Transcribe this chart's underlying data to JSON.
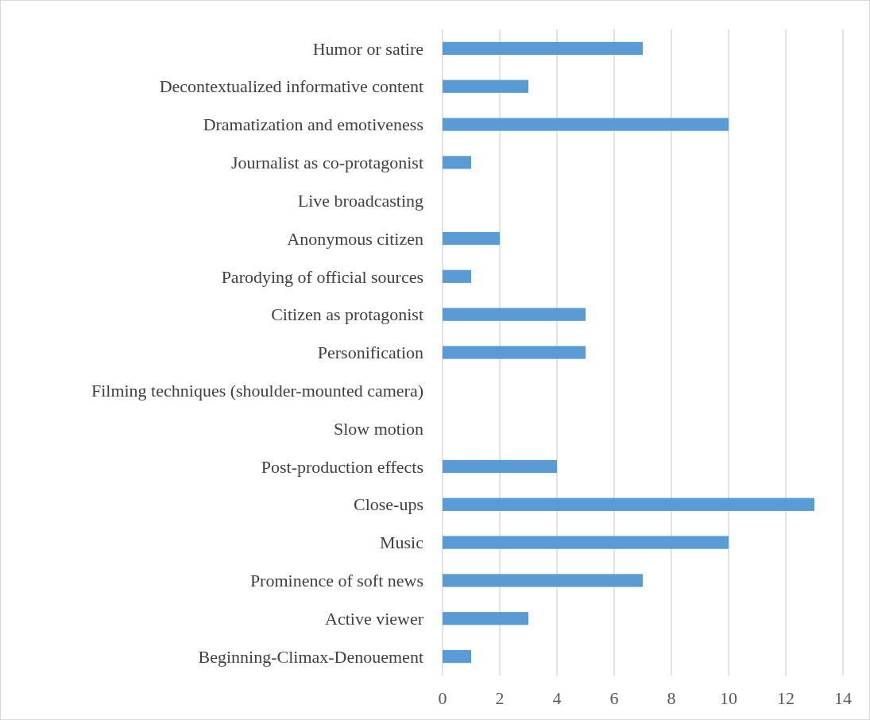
{
  "chart_data": {
    "type": "bar",
    "orientation": "horizontal",
    "categories": [
      "Humor or satire",
      "Decontextualized informative content",
      "Dramatization and emotiveness",
      "Journalist as co-protagonist",
      "Live broadcasting",
      "Anonymous citizen",
      "Parodying of official sources",
      "Citizen as protagonist",
      "Personification",
      "Filming techniques (shoulder-mounted camera)",
      "Slow motion",
      "Post-production effects",
      "Close-ups",
      "Music",
      "Prominence of soft news",
      "Active viewer",
      "Beginning-Climax-Denouement"
    ],
    "values": [
      7,
      3,
      10,
      1,
      0,
      2,
      1,
      5,
      5,
      0,
      0,
      4,
      13,
      10,
      7,
      3,
      1
    ],
    "color": "#5b9bd5",
    "xlim": [
      0,
      14
    ],
    "xticks": [
      0,
      2,
      4,
      6,
      8,
      10,
      12,
      14
    ],
    "grid": "x"
  }
}
